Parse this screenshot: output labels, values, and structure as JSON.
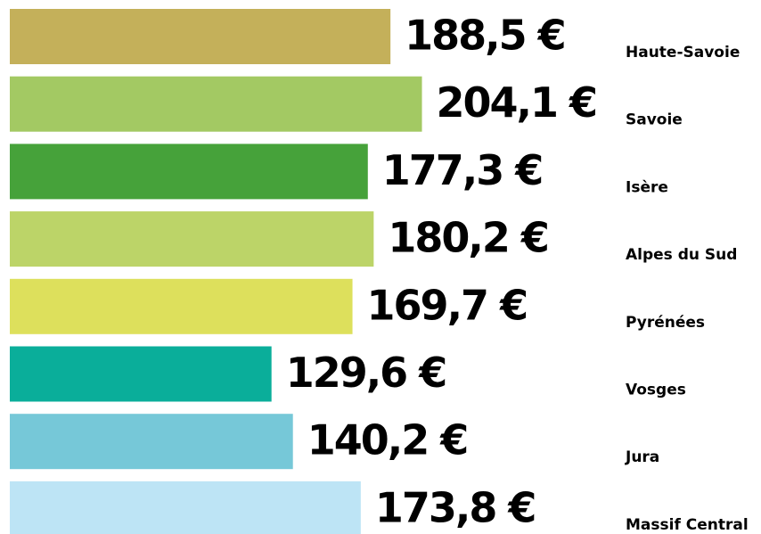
{
  "chart_data": {
    "type": "bar",
    "orientation": "horizontal",
    "categories": [
      "Haute-Savoie",
      "Savoie",
      "Isère",
      "Alpes du Sud",
      "Pyrénées",
      "Vosges",
      "Jura",
      "Massif Central"
    ],
    "values": [
      188.5,
      204.1,
      177.3,
      180.2,
      169.7,
      129.6,
      140.2,
      173.8
    ],
    "value_labels": [
      "188,5 €",
      "204,1 €",
      "177,3 €",
      "180,2 €",
      "169,7 €",
      "129,6 €",
      "140,2 €",
      "173,8 €"
    ],
    "colors": [
      "#c4b05a",
      "#a3c963",
      "#46a23a",
      "#bcd468",
      "#dde05c",
      "#0aae9a",
      "#76c8d8",
      "#bde4f5"
    ],
    "xlim": [
      0,
      372
    ]
  }
}
